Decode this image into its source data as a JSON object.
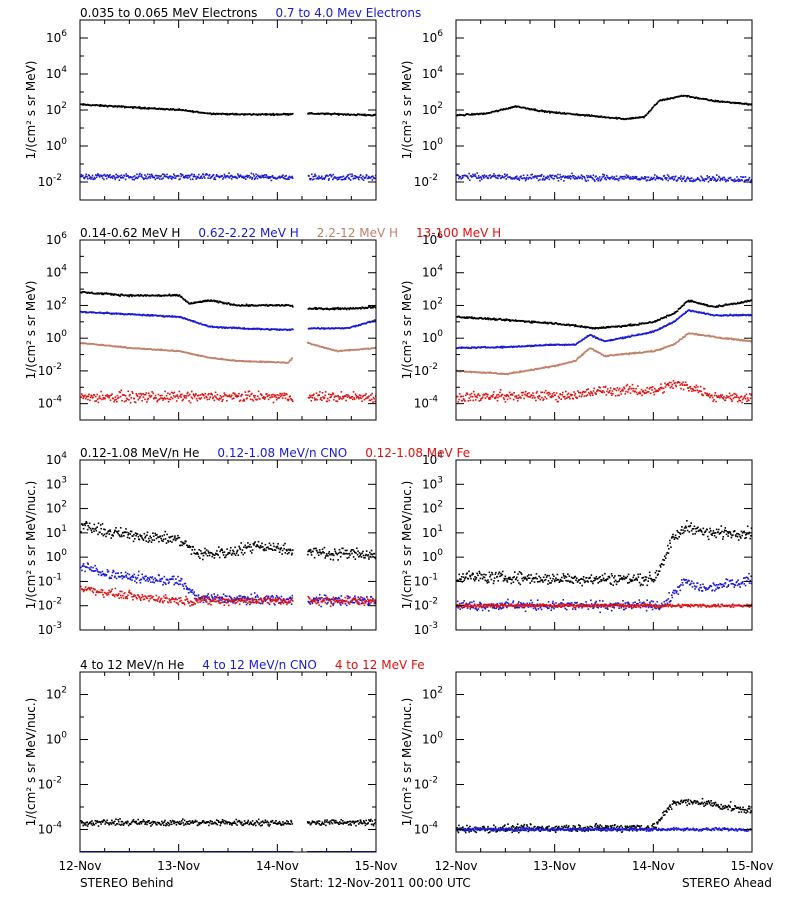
{
  "footer": {
    "left": "STEREO Behind",
    "center": "Start: 12-Nov-2011 00:00 UTC",
    "right": "STEREO Ahead"
  },
  "x_tick_labels": [
    "12-Nov",
    "13-Nov",
    "14-Nov",
    "15-Nov"
  ],
  "colors": {
    "black": "#000000",
    "blue": "#1a1ad6",
    "tan": "#c08068",
    "red": "#e01010"
  },
  "chart_data": [
    {
      "type": "scatter",
      "panel": "row1-behind",
      "legend": [
        {
          "name": "0.035 to 0.065 MeV Electrons",
          "color": "#000000"
        },
        {
          "name": "0.7 to 4.0 Mev Electrons",
          "color": "#1a1ad6"
        }
      ],
      "ylabel": "1/(cm² s sr MeV)",
      "yscale": "log",
      "ylim_exp": [
        -3,
        7
      ],
      "ytick_exps": [
        -2,
        0,
        2,
        4,
        6
      ],
      "x_unit": "days since 12-Nov-2011 00:00 UTC",
      "xlim": [
        0,
        3
      ],
      "data_gap": [
        2.15,
        2.3
      ],
      "series": [
        {
          "name": "0.035 to 0.065 MeV Electrons",
          "color": "#000000",
          "scatter": 0.06,
          "log_values": [
            [
              0,
              2.3
            ],
            [
              0.5,
              2.15
            ],
            [
              1.0,
              2.0
            ],
            [
              1.3,
              1.8
            ],
            [
              1.6,
              1.75
            ],
            [
              2.0,
              1.75
            ],
            [
              2.3,
              1.8
            ],
            [
              2.7,
              1.75
            ],
            [
              3.0,
              1.7
            ]
          ]
        },
        {
          "name": "0.7 to 4.0 Mev Electrons",
          "color": "#1a1ad6",
          "scatter": 0.25,
          "log_values": [
            [
              0,
              -1.7
            ],
            [
              3.0,
              -1.75
            ]
          ]
        }
      ]
    },
    {
      "type": "scatter",
      "panel": "row1-ahead",
      "ylabel": "1/(cm² s sr MeV)",
      "yscale": "log",
      "ylim_exp": [
        -3,
        7
      ],
      "ytick_exps": [
        -2,
        0,
        2,
        4,
        6
      ],
      "xlim": [
        0,
        3
      ],
      "series": [
        {
          "name": "0.035 to 0.065 MeV Electrons",
          "color": "#000000",
          "scatter": 0.06,
          "log_values": [
            [
              0,
              1.7
            ],
            [
              0.3,
              1.8
            ],
            [
              0.6,
              2.2
            ],
            [
              0.9,
              1.9
            ],
            [
              1.3,
              1.7
            ],
            [
              1.7,
              1.5
            ],
            [
              1.9,
              1.6
            ],
            [
              2.05,
              2.5
            ],
            [
              2.3,
              2.8
            ],
            [
              2.6,
              2.5
            ],
            [
              3.0,
              2.3
            ]
          ]
        },
        {
          "name": "0.7 to 4.0 Mev Electrons",
          "color": "#1a1ad6",
          "scatter": 0.25,
          "log_values": [
            [
              0,
              -1.7
            ],
            [
              3.0,
              -1.85
            ]
          ]
        }
      ]
    },
    {
      "type": "scatter",
      "panel": "row2-behind",
      "legend": [
        {
          "name": "0.14-0.62 MeV H",
          "color": "#000000"
        },
        {
          "name": "0.62-2.22 MeV H",
          "color": "#1a1ad6"
        },
        {
          "name": "2.2-12 MeV H",
          "color": "#c08068"
        },
        {
          "name": "13-100 MeV H",
          "color": "#e01010"
        }
      ],
      "ylabel": "1/(cm² s sr MeV)",
      "yscale": "log",
      "ylim_exp": [
        -5,
        6
      ],
      "ytick_exps": [
        -4,
        -2,
        0,
        2,
        4,
        6
      ],
      "xlim": [
        0,
        3
      ],
      "data_gap": [
        2.15,
        2.3
      ],
      "series": [
        {
          "name": "0.14-0.62 MeV H",
          "color": "#000000",
          "scatter": 0.08,
          "log_values": [
            [
              0,
              2.8
            ],
            [
              0.5,
              2.6
            ],
            [
              1.0,
              2.6
            ],
            [
              1.1,
              2.1
            ],
            [
              1.3,
              2.3
            ],
            [
              1.6,
              2.0
            ],
            [
              2.1,
              2.0
            ],
            [
              2.3,
              1.8
            ],
            [
              2.7,
              1.8
            ],
            [
              3.0,
              1.9
            ]
          ]
        },
        {
          "name": "0.62-2.22 MeV H",
          "color": "#1a1ad6",
          "scatter": 0.06,
          "log_values": [
            [
              0,
              1.6
            ],
            [
              0.5,
              1.45
            ],
            [
              1.0,
              1.3
            ],
            [
              1.3,
              0.7
            ],
            [
              1.6,
              0.6
            ],
            [
              2.1,
              0.5
            ],
            [
              2.3,
              0.6
            ],
            [
              2.7,
              0.6
            ],
            [
              3.0,
              1.1
            ]
          ]
        },
        {
          "name": "2.2-12 MeV H",
          "color": "#c08068",
          "scatter": 0.05,
          "log_values": [
            [
              0,
              -0.3
            ],
            [
              0.5,
              -0.6
            ],
            [
              1.0,
              -0.8
            ],
            [
              1.3,
              -1.2
            ],
            [
              1.6,
              -1.4
            ],
            [
              2.1,
              -1.5
            ],
            [
              2.3,
              -0.3
            ],
            [
              2.6,
              -0.8
            ],
            [
              3.0,
              -0.6
            ]
          ]
        },
        {
          "name": "13-100 MeV H",
          "color": "#e01010",
          "scatter": 0.45,
          "log_values": [
            [
              0,
              -3.6
            ],
            [
              3.0,
              -3.6
            ]
          ]
        }
      ]
    },
    {
      "type": "scatter",
      "panel": "row2-ahead",
      "ylabel": "1/(cm² s sr MeV)",
      "yscale": "log",
      "ylim_exp": [
        -5,
        6
      ],
      "ytick_exps": [
        -4,
        -2,
        0,
        2,
        4,
        6
      ],
      "xlim": [
        0,
        3
      ],
      "series": [
        {
          "name": "0.14-0.62 MeV H",
          "color": "#000000",
          "scatter": 0.08,
          "log_values": [
            [
              0,
              1.3
            ],
            [
              0.5,
              1.1
            ],
            [
              1.0,
              0.9
            ],
            [
              1.4,
              0.6
            ],
            [
              1.8,
              0.8
            ],
            [
              2.0,
              1.0
            ],
            [
              2.2,
              1.5
            ],
            [
              2.35,
              2.3
            ],
            [
              2.6,
              1.9
            ],
            [
              3.0,
              2.3
            ]
          ]
        },
        {
          "name": "0.62-2.22 MeV H",
          "color": "#1a1ad6",
          "scatter": 0.06,
          "log_values": [
            [
              0,
              -0.6
            ],
            [
              0.5,
              -0.55
            ],
            [
              1.0,
              -0.4
            ],
            [
              1.2,
              -0.4
            ],
            [
              1.35,
              0.2
            ],
            [
              1.5,
              -0.2
            ],
            [
              2.0,
              0.4
            ],
            [
              2.2,
              1.0
            ],
            [
              2.35,
              1.7
            ],
            [
              2.6,
              1.4
            ],
            [
              3.0,
              1.4
            ]
          ]
        },
        {
          "name": "2.2-12 MeV H",
          "color": "#c08068",
          "scatter": 0.06,
          "log_values": [
            [
              0,
              -2.0
            ],
            [
              0.5,
              -2.2
            ],
            [
              1.0,
              -1.7
            ],
            [
              1.2,
              -1.4
            ],
            [
              1.35,
              -0.6
            ],
            [
              1.5,
              -1.1
            ],
            [
              2.0,
              -0.8
            ],
            [
              2.2,
              -0.4
            ],
            [
              2.35,
              0.3
            ],
            [
              2.7,
              0.0
            ],
            [
              3.0,
              -0.2
            ]
          ]
        },
        {
          "name": "13-100 MeV H",
          "color": "#e01010",
          "scatter": 0.45,
          "log_values": [
            [
              0,
              -3.6
            ],
            [
              1.2,
              -3.5
            ],
            [
              1.5,
              -3.2
            ],
            [
              2.0,
              -3.2
            ],
            [
              2.2,
              -2.8
            ],
            [
              2.4,
              -3.0
            ],
            [
              2.6,
              -3.6
            ],
            [
              3.0,
              -3.6
            ]
          ]
        }
      ]
    },
    {
      "type": "scatter",
      "panel": "row3-behind",
      "legend": [
        {
          "name": "0.12-1.08 MeV/n He",
          "color": "#000000"
        },
        {
          "name": "0.12-1.08 MeV/n CNO",
          "color": "#1a1ad6"
        },
        {
          "name": "0.12-1.08 MeV Fe",
          "color": "#e01010"
        }
      ],
      "ylabel": "1/(cm² s sr MeV/nuc.)",
      "yscale": "log",
      "ylim_exp": [
        -3,
        4
      ],
      "ytick_exps": [
        -3,
        -2,
        -1,
        0,
        1,
        2,
        3,
        4
      ],
      "xlim": [
        0,
        3
      ],
      "data_gap": [
        2.15,
        2.3
      ],
      "series": [
        {
          "name": "0.12-1.08 MeV/n He",
          "color": "#000000",
          "scatter": 0.35,
          "log_values": [
            [
              0,
              1.3
            ],
            [
              0.3,
              1.0
            ],
            [
              0.8,
              0.8
            ],
            [
              1.0,
              0.7
            ],
            [
              1.2,
              0.1
            ],
            [
              1.5,
              0.2
            ],
            [
              1.8,
              0.5
            ],
            [
              2.1,
              0.3
            ],
            [
              2.3,
              0.2
            ],
            [
              3.0,
              0.1
            ]
          ]
        },
        {
          "name": "0.12-1.08 MeV/n CNO",
          "color": "#1a1ad6",
          "scatter": 0.3,
          "log_values": [
            [
              0,
              -0.4
            ],
            [
              0.4,
              -0.8
            ],
            [
              1.0,
              -1.0
            ],
            [
              1.2,
              -1.7
            ],
            [
              3.0,
              -1.8
            ]
          ]
        },
        {
          "name": "0.12-1.08 MeV Fe",
          "color": "#e01010",
          "scatter": 0.25,
          "log_values": [
            [
              0,
              -1.3
            ],
            [
              0.5,
              -1.6
            ],
            [
              1.0,
              -1.8
            ],
            [
              3.0,
              -1.8
            ]
          ]
        }
      ]
    },
    {
      "type": "scatter",
      "panel": "row3-ahead",
      "ylabel": "1/(cm² s sr MeV/nuc.)",
      "yscale": "log",
      "ylim_exp": [
        -3,
        4
      ],
      "ytick_exps": [
        -3,
        -2,
        -1,
        0,
        1,
        2,
        3,
        4
      ],
      "xlim": [
        0,
        3
      ],
      "series": [
        {
          "name": "0.12-1.08 MeV/n He",
          "color": "#000000",
          "scatter": 0.35,
          "log_values": [
            [
              0,
              -0.8
            ],
            [
              1.0,
              -0.9
            ],
            [
              2.0,
              -0.9
            ],
            [
              2.2,
              0.8
            ],
            [
              2.35,
              1.3
            ],
            [
              2.5,
              1.0
            ],
            [
              3.0,
              1.0
            ]
          ]
        },
        {
          "name": "0.12-1.08 MeV/n CNO",
          "color": "#1a1ad6",
          "scatter": 0.3,
          "log_values": [
            [
              0,
              -2.0
            ],
            [
              2.1,
              -2.0
            ],
            [
              2.3,
              -1.0
            ],
            [
              2.5,
              -1.3
            ],
            [
              3.0,
              -0.9
            ]
          ]
        },
        {
          "name": "0.12-1.08 MeV Fe",
          "color": "#e01010",
          "scatter": 0.1,
          "log_values": [
            [
              0,
              -2.0
            ],
            [
              3.0,
              -2.0
            ]
          ]
        }
      ]
    },
    {
      "type": "scatter",
      "panel": "row4-behind",
      "legend": [
        {
          "name": "4 to 12 MeV/n He",
          "color": "#000000"
        },
        {
          "name": "4 to 12 MeV/n CNO",
          "color": "#1a1ad6"
        },
        {
          "name": "4 to 12 MeV Fe",
          "color": "#e01010"
        }
      ],
      "ylabel": "1/(cm² s sr MeV/nuc.)",
      "yscale": "log",
      "ylim_exp": [
        -5,
        3
      ],
      "ytick_exps": [
        -4,
        -2,
        0,
        2
      ],
      "xlim": [
        0,
        3
      ],
      "data_gap": [
        2.15,
        2.3
      ],
      "series": [
        {
          "name": "4 to 12 MeV/n He",
          "color": "#000000",
          "scatter": 0.2,
          "log_values": [
            [
              0,
              -3.7
            ],
            [
              3.0,
              -3.7
            ]
          ]
        },
        {
          "name": "4 to 12 MeV/n CNO",
          "color": "#1a1ad6",
          "scatter": 0.0,
          "log_values": [
            [
              0,
              -5.0
            ],
            [
              3.0,
              -5.0
            ]
          ]
        }
      ]
    },
    {
      "type": "scatter",
      "panel": "row4-ahead",
      "ylabel": "1/(cm² s sr MeV/nuc.)",
      "yscale": "log",
      "ylim_exp": [
        -5,
        3
      ],
      "ytick_exps": [
        -4,
        -2,
        0,
        2
      ],
      "xlim": [
        0,
        3
      ],
      "series": [
        {
          "name": "4 to 12 MeV/n He",
          "color": "#000000",
          "scatter": 0.25,
          "log_values": [
            [
              0,
              -4.0
            ],
            [
              2.0,
              -3.9
            ],
            [
              2.2,
              -2.8
            ],
            [
              2.5,
              -2.8
            ],
            [
              3.0,
              -3.2
            ]
          ]
        },
        {
          "name": "4 to 12 MeV/n CNO",
          "color": "#1a1ad6",
          "scatter": 0.1,
          "log_values": [
            [
              0,
              -4.0
            ],
            [
              2.0,
              -4.0
            ],
            [
              2.3,
              -4.0
            ],
            [
              3.0,
              -4.0
            ]
          ]
        }
      ]
    }
  ]
}
